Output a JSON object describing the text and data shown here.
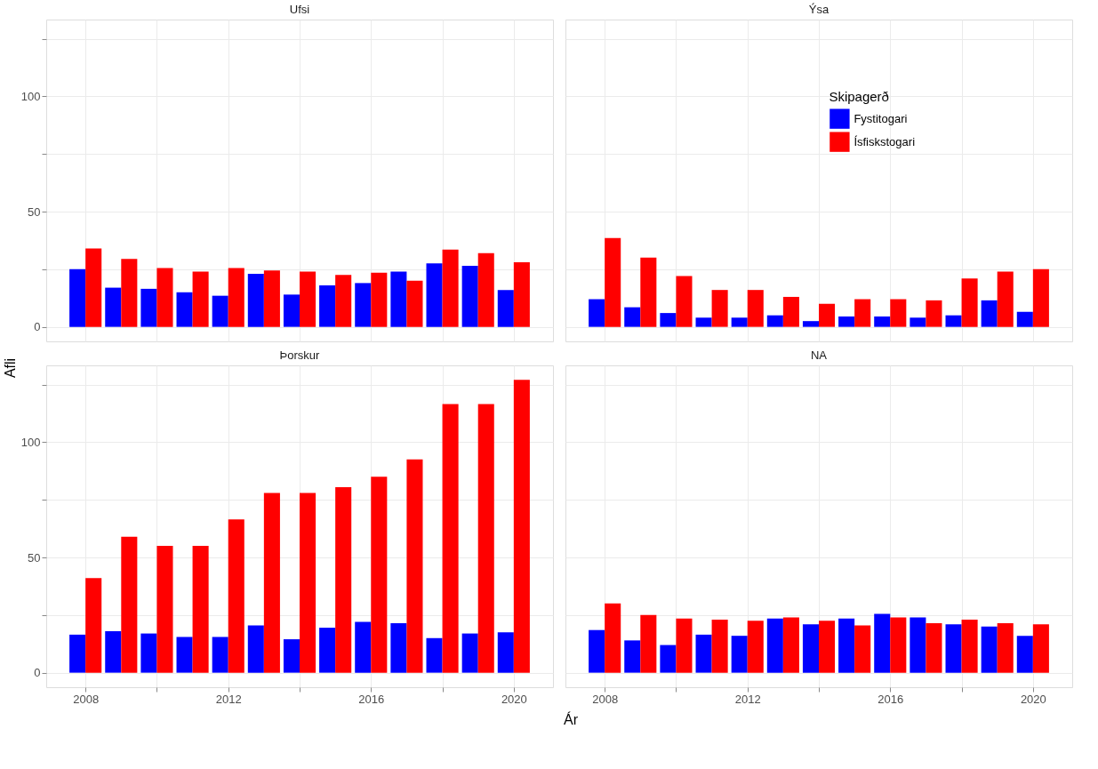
{
  "chart_data": [
    {
      "type": "bar",
      "title": "Ufsi",
      "ylabel": "Afli",
      "x": [
        2008,
        2009,
        2010,
        2011,
        2012,
        2013,
        2014,
        2015,
        2016,
        2017,
        2018,
        2019,
        2020
      ],
      "xlim": [
        2006.9,
        2021.1
      ],
      "ylim": [
        -6.3,
        133.3
      ],
      "xticks": [
        2008,
        {
          "value": 2010,
          "label": null
        },
        2012,
        {
          "value": 2014,
          "label": null
        },
        2016,
        {
          "value": 2018,
          "label": null
        },
        2020
      ],
      "yticks": [
        0,
        {
          "value": 25,
          "label": null
        },
        50,
        {
          "value": 75,
          "label": null
        },
        100,
        {
          "value": 125,
          "label": null
        }
      ],
      "grid": true,
      "tick_labels": "y",
      "series": [
        {
          "color": "#0000ff",
          "values": [
            25,
            17,
            16.5,
            15,
            13.5,
            23,
            14,
            18,
            19,
            24,
            27.5,
            26.5,
            16
          ]
        },
        {
          "color": "#ff0000",
          "values": [
            34,
            29.5,
            25.5,
            24,
            25.5,
            24.5,
            24,
            22.5,
            23.5,
            20,
            33.5,
            32,
            28
          ]
        }
      ]
    },
    {
      "type": "bar",
      "title": "Ýsa",
      "legend_title": "Skipagerð",
      "legend": "top right",
      "x": [
        2008,
        2009,
        2010,
        2011,
        2012,
        2013,
        2014,
        2015,
        2016,
        2017,
        2018,
        2019,
        2020
      ],
      "xlim": [
        2006.9,
        2021.1
      ],
      "ylim": [
        -6.3,
        133.3
      ],
      "xticks": [
        2008,
        {
          "value": 2010,
          "label": null
        },
        2012,
        {
          "value": 2014,
          "label": null
        },
        2016,
        {
          "value": 2018,
          "label": null
        },
        2020
      ],
      "yticks": [
        0,
        {
          "value": 25,
          "label": null
        },
        50,
        {
          "value": 75,
          "label": null
        },
        100,
        {
          "value": 125,
          "label": null
        }
      ],
      "grid": true,
      "tick_labels": false,
      "series": [
        {
          "name": "Fystitogari",
          "color": "#0000ff",
          "values": [
            12,
            8.5,
            6,
            4,
            4,
            5,
            2.5,
            4.5,
            4.5,
            4,
            5,
            11.5,
            6.5
          ]
        },
        {
          "name": "Ísfiskstogari",
          "color": "#ff0000",
          "values": [
            38.5,
            30,
            22,
            16,
            16,
            13,
            10,
            12,
            12,
            11.5,
            21,
            24,
            25
          ]
        }
      ]
    },
    {
      "type": "bar",
      "title": "Þorskur",
      "xlabel": "Ár",
      "x": [
        2008,
        2009,
        2010,
        2011,
        2012,
        2013,
        2014,
        2015,
        2016,
        2017,
        2018,
        2019,
        2020
      ],
      "xlim": [
        2006.9,
        2021.1
      ],
      "ylim": [
        -6.3,
        133.3
      ],
      "xticks": [
        2008,
        {
          "value": 2010,
          "label": null
        },
        2012,
        {
          "value": 2014,
          "label": null
        },
        2016,
        {
          "value": 2018,
          "label": null
        },
        2020
      ],
      "yticks": [
        0,
        {
          "value": 25,
          "label": null
        },
        50,
        {
          "value": 75,
          "label": null
        },
        100,
        {
          "value": 125,
          "label": null
        }
      ],
      "grid": true,
      "series": [
        {
          "color": "#0000ff",
          "values": [
            16.5,
            18,
            17,
            15.5,
            15.5,
            20.5,
            14.5,
            19.5,
            22,
            21.5,
            15,
            17,
            17.5
          ]
        },
        {
          "color": "#ff0000",
          "values": [
            41,
            59,
            55,
            55,
            66.5,
            78,
            78,
            80.5,
            85,
            92.5,
            116.5,
            116.5,
            127
          ]
        }
      ]
    },
    {
      "type": "bar",
      "title": "NA",
      "x": [
        2008,
        2009,
        2010,
        2011,
        2012,
        2013,
        2014,
        2015,
        2016,
        2017,
        2018,
        2019,
        2020
      ],
      "xlim": [
        2006.9,
        2021.1
      ],
      "ylim": [
        -6.3,
        133.3
      ],
      "xticks": [
        2008,
        {
          "value": 2010,
          "label": null
        },
        2012,
        {
          "value": 2014,
          "label": null
        },
        2016,
        {
          "value": 2018,
          "label": null
        },
        2020
      ],
      "yticks": [
        0,
        {
          "value": 25,
          "label": null
        },
        50,
        {
          "value": 75,
          "label": null
        },
        100,
        {
          "value": 125,
          "label": null
        }
      ],
      "grid": true,
      "tick_labels": "x",
      "series": [
        {
          "color": "#0000ff",
          "values": [
            18.5,
            14,
            12,
            16.5,
            16,
            23.5,
            21,
            23.5,
            25.5,
            24,
            21,
            20,
            16
          ]
        },
        {
          "color": "#ff0000",
          "values": [
            30,
            25,
            23.5,
            23,
            22.5,
            24,
            22.5,
            20.5,
            24,
            21.5,
            23,
            21.5,
            21
          ]
        }
      ]
    }
  ]
}
